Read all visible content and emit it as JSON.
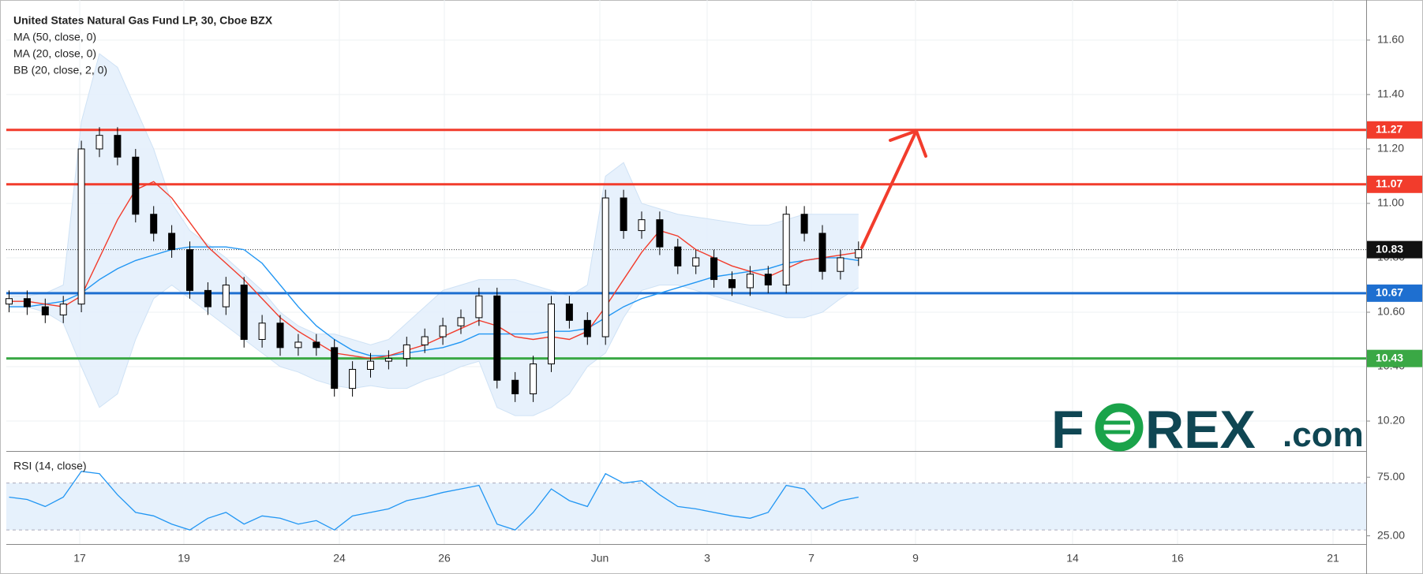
{
  "chart_data": {
    "type": "candlestick",
    "title": "United States Natural Gas Fund LP, 30, Cboe BZX",
    "indicators": [
      "MA (50, close, 0)",
      "MA (20, close, 0)",
      "BB (20, close, 2, 0)"
    ],
    "x_labels": [
      "17",
      "19",
      "24",
      "26",
      "Jun",
      "3",
      "7",
      "9",
      "14",
      "16",
      "21"
    ],
    "open": [
      10.63,
      10.65,
      10.62,
      10.59,
      10.63,
      11.2,
      11.25,
      11.17,
      10.96,
      10.89,
      10.83,
      10.68,
      10.62,
      10.7,
      10.5,
      10.56,
      10.47,
      10.49,
      10.47,
      10.32,
      10.39,
      10.42,
      10.43,
      10.48,
      10.51,
      10.55,
      10.58,
      10.66,
      10.35,
      10.3,
      10.41,
      10.63,
      10.57,
      10.51,
      11.02,
      10.9,
      10.94,
      10.84,
      10.77,
      10.8,
      10.72,
      10.69,
      10.74,
      10.7,
      10.96,
      10.89,
      10.75,
      10.8
    ],
    "high": [
      10.68,
      10.68,
      10.65,
      10.66,
      11.23,
      11.28,
      11.28,
      11.2,
      10.99,
      10.92,
      10.86,
      10.71,
      10.73,
      10.73,
      10.59,
      10.59,
      10.52,
      10.52,
      10.5,
      10.42,
      10.45,
      10.46,
      10.51,
      10.54,
      10.58,
      10.61,
      10.69,
      10.69,
      10.38,
      10.44,
      10.66,
      10.66,
      10.6,
      11.05,
      11.05,
      10.97,
      10.97,
      10.87,
      10.83,
      10.83,
      10.75,
      10.77,
      10.77,
      10.99,
      10.99,
      10.92,
      10.83,
      10.86
    ],
    "low": [
      10.6,
      10.59,
      10.56,
      10.56,
      10.6,
      11.17,
      11.14,
      10.93,
      10.86,
      10.8,
      10.65,
      10.59,
      10.59,
      10.47,
      10.47,
      10.44,
      10.44,
      10.44,
      10.29,
      10.29,
      10.36,
      10.39,
      10.4,
      10.45,
      10.48,
      10.52,
      10.55,
      10.32,
      10.27,
      10.27,
      10.38,
      10.54,
      10.48,
      10.48,
      10.87,
      10.87,
      10.81,
      10.74,
      10.74,
      10.69,
      10.66,
      10.66,
      10.67,
      10.67,
      10.86,
      10.72,
      10.72,
      10.77
    ],
    "close": [
      10.65,
      10.62,
      10.59,
      10.63,
      11.2,
      11.25,
      11.17,
      10.96,
      10.89,
      10.83,
      10.68,
      10.62,
      10.7,
      10.5,
      10.56,
      10.47,
      10.49,
      10.47,
      10.32,
      10.39,
      10.42,
      10.43,
      10.48,
      10.51,
      10.55,
      10.58,
      10.66,
      10.35,
      10.3,
      10.41,
      10.63,
      10.57,
      10.51,
      11.02,
      10.9,
      10.94,
      10.84,
      10.77,
      10.8,
      10.72,
      10.69,
      10.74,
      10.7,
      10.96,
      10.89,
      10.75,
      10.8,
      10.83
    ],
    "ma50": [
      10.62,
      10.62,
      10.63,
      10.64,
      10.67,
      10.72,
      10.76,
      10.79,
      10.81,
      10.83,
      10.84,
      10.84,
      10.84,
      10.83,
      10.78,
      10.7,
      10.62,
      10.55,
      10.5,
      10.46,
      10.44,
      10.44,
      10.45,
      10.46,
      10.47,
      10.49,
      10.52,
      10.52,
      10.52,
      10.52,
      10.53,
      10.53,
      10.54,
      10.58,
      10.62,
      10.65,
      10.67,
      10.69,
      10.71,
      10.73,
      10.74,
      10.75,
      10.76,
      10.78,
      10.79,
      10.8,
      10.8,
      10.79
    ],
    "ma20": [
      10.64,
      10.64,
      10.63,
      10.62,
      10.66,
      10.8,
      10.94,
      11.05,
      11.08,
      11.02,
      10.93,
      10.84,
      10.78,
      10.72,
      10.65,
      10.58,
      10.53,
      10.49,
      10.45,
      10.44,
      10.43,
      10.44,
      10.46,
      10.48,
      10.51,
      10.54,
      10.57,
      10.55,
      10.51,
      10.5,
      10.51,
      10.5,
      10.53,
      10.62,
      10.72,
      10.82,
      10.9,
      10.88,
      10.83,
      10.8,
      10.77,
      10.75,
      10.73,
      10.76,
      10.79,
      10.8,
      10.81,
      10.82
    ],
    "bb_upper": [
      10.66,
      10.66,
      10.67,
      10.7,
      11.3,
      11.55,
      11.5,
      11.35,
      11.2,
      11.0,
      10.9,
      10.85,
      10.8,
      10.74,
      10.68,
      10.6,
      10.55,
      10.52,
      10.52,
      10.5,
      10.48,
      10.5,
      10.56,
      10.62,
      10.68,
      10.7,
      10.72,
      10.72,
      10.72,
      10.7,
      10.68,
      10.66,
      10.7,
      11.1,
      11.15,
      11.0,
      10.98,
      10.96,
      10.95,
      10.94,
      10.93,
      10.92,
      10.92,
      10.94,
      10.96,
      10.96,
      10.96,
      10.96
    ],
    "bb_lower": [
      10.62,
      10.62,
      10.6,
      10.56,
      10.4,
      10.25,
      10.3,
      10.5,
      10.65,
      10.7,
      10.65,
      10.6,
      10.55,
      10.5,
      10.45,
      10.4,
      10.38,
      10.35,
      10.33,
      10.32,
      10.33,
      10.32,
      10.32,
      10.35,
      10.37,
      10.4,
      10.42,
      10.25,
      10.22,
      10.22,
      10.25,
      10.3,
      10.4,
      10.45,
      10.58,
      10.68,
      10.7,
      10.7,
      10.68,
      10.66,
      10.64,
      10.62,
      10.6,
      10.58,
      10.58,
      10.6,
      10.65,
      10.69
    ],
    "colors": {
      "up": "#ffffff",
      "down": "#000000",
      "ma50": "#2196f3",
      "ma20": "#f23c2c",
      "bb": "#cfe2f5"
    },
    "ylim": [
      10.09,
      11.73
    ],
    "yticks": [
      {
        "value": 10.2,
        "label": "10.20"
      },
      {
        "value": 10.4,
        "label": "10.40"
      },
      {
        "value": 10.6,
        "label": "10.60"
      },
      {
        "value": 10.8,
        "label": "10.80"
      },
      {
        "value": 11.0,
        "label": "11.00"
      },
      {
        "value": 11.2,
        "label": "11.20"
      },
      {
        "value": 11.4,
        "label": "11.40"
      },
      {
        "value": 11.6,
        "label": "11.60"
      }
    ],
    "grid": true,
    "levels": [
      {
        "value": 11.27,
        "color": "#f23c2c"
      },
      {
        "value": 11.07,
        "color": "#f23c2c"
      },
      {
        "value": 10.67,
        "color": "#1e6fd0"
      },
      {
        "value": 10.43,
        "color": "#3aa845"
      }
    ],
    "last_price": 10.83,
    "rsi": {
      "title": "RSI (14, close)",
      "color": "#2196f3",
      "values": [
        58,
        56,
        50,
        58,
        80,
        78,
        60,
        45,
        42,
        35,
        30,
        40,
        45,
        35,
        42,
        40,
        35,
        38,
        30,
        42,
        45,
        48,
        55,
        58,
        62,
        65,
        68,
        35,
        30,
        45,
        65,
        55,
        50,
        78,
        70,
        72,
        60,
        50,
        48,
        45,
        42,
        40,
        45,
        68,
        65,
        48,
        55,
        58
      ],
      "band": [
        30,
        70
      ],
      "ylim": [
        18,
        96
      ],
      "yticks": [
        {
          "value": 25,
          "label": "25.00"
        },
        {
          "value": 75,
          "label": "75.00"
        }
      ]
    }
  },
  "logo": {
    "f": "F",
    "rex": "REX",
    "com": ".com"
  }
}
